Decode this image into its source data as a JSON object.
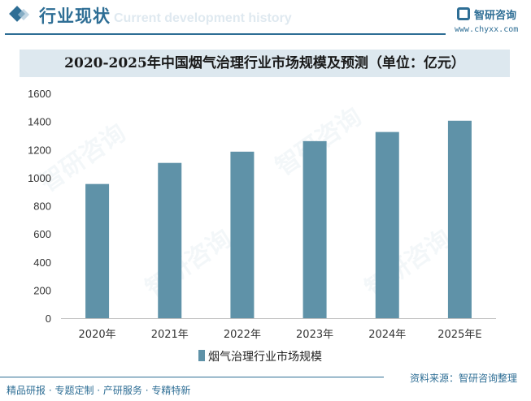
{
  "header": {
    "section_title": "行业现状",
    "section_subtitle": "Current development history",
    "logo_text": "智研咨询",
    "logo_url": "www.chyxx.com"
  },
  "watermark_text": "智研咨询",
  "colors": {
    "accent": "#2e6e95",
    "bar": "#5f92a8",
    "title_band": "#dde8ef"
  },
  "chart_data": {
    "type": "bar",
    "title": "2020-2025年中国烟气治理行业市场规模及预测（单位：亿元）",
    "categories": [
      "2020年",
      "2021年",
      "2022年",
      "2023年",
      "2024年",
      "2025年E"
    ],
    "series": [
      {
        "name": "烟气治理行业市场规模",
        "values": [
          955,
          1105,
          1185,
          1260,
          1325,
          1405
        ]
      }
    ],
    "xlabel": "",
    "ylabel": "",
    "ylim": [
      0,
      1600
    ],
    "yticks": [
      0,
      200,
      400,
      600,
      800,
      1000,
      1200,
      1400,
      1600
    ],
    "grid": false,
    "legend": "bottom-center"
  },
  "footer": {
    "left": "精品研报 · 专题定制 · 产研服务 · 专精特新",
    "right": "资料来源：智研咨询整理"
  }
}
